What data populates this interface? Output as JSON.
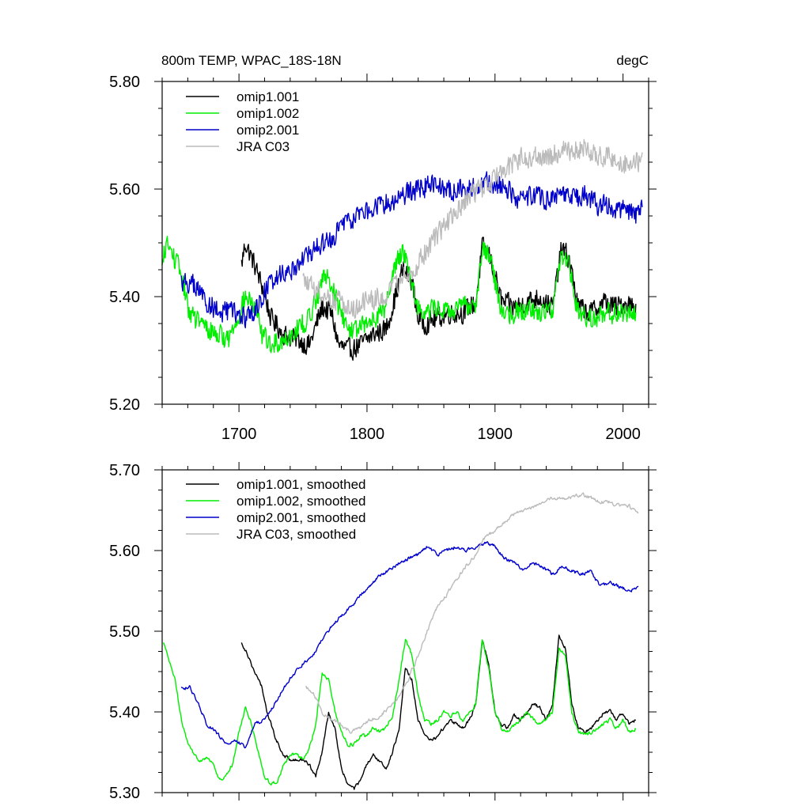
{
  "chart_data": [
    {
      "type": "line",
      "title": "800m TEMP, WPAC_18S-18N",
      "units": "degC",
      "xlim": [
        1640,
        2020
      ],
      "ylim": [
        5.2,
        5.8
      ],
      "xticks": [
        1700,
        1800,
        1900,
        2000
      ],
      "xtick_labels": [
        "1700",
        "1800",
        "1900",
        "2000"
      ],
      "yticks": [
        5.2,
        5.4,
        5.6,
        5.8
      ],
      "ytick_labels": [
        "5.20",
        "5.40",
        "5.60",
        "5.80"
      ],
      "noise": 0.018,
      "series": [
        {
          "name": "omip1.001",
          "color": "#000000",
          "x": [
            1702,
            1705,
            1712,
            1718,
            1725,
            1735,
            1745,
            1755,
            1765,
            1772,
            1778,
            1785,
            1795,
            1805,
            1815,
            1822,
            1828,
            1835,
            1840,
            1845,
            1855,
            1865,
            1875,
            1885,
            1890,
            1895,
            1900,
            1905,
            1915,
            1925,
            1935,
            1945,
            1952,
            1958,
            1965,
            1975,
            1985,
            1995,
            2003,
            2010
          ],
          "y": [
            5.46,
            5.5,
            5.46,
            5.42,
            5.36,
            5.33,
            5.32,
            5.31,
            5.38,
            5.37,
            5.31,
            5.3,
            5.31,
            5.33,
            5.34,
            5.4,
            5.45,
            5.43,
            5.36,
            5.35,
            5.36,
            5.37,
            5.37,
            5.39,
            5.49,
            5.48,
            5.44,
            5.39,
            5.38,
            5.39,
            5.4,
            5.38,
            5.49,
            5.47,
            5.38,
            5.37,
            5.39,
            5.38,
            5.39,
            5.38
          ]
        },
        {
          "name": "omip1.002",
          "color": "#00ee00",
          "x": [
            1640,
            1643,
            1650,
            1655,
            1660,
            1665,
            1675,
            1685,
            1692,
            1700,
            1705,
            1712,
            1718,
            1725,
            1735,
            1745,
            1755,
            1765,
            1770,
            1778,
            1785,
            1795,
            1805,
            1815,
            1822,
            1828,
            1835,
            1840,
            1845,
            1855,
            1865,
            1875,
            1885,
            1890,
            1895,
            1900,
            1905,
            1915,
            1925,
            1935,
            1945,
            1952,
            1958,
            1965,
            1975,
            1985,
            1995,
            2003,
            2010
          ],
          "y": [
            5.45,
            5.5,
            5.47,
            5.44,
            5.38,
            5.36,
            5.34,
            5.33,
            5.32,
            5.37,
            5.4,
            5.38,
            5.33,
            5.31,
            5.32,
            5.34,
            5.36,
            5.43,
            5.44,
            5.38,
            5.34,
            5.34,
            5.36,
            5.38,
            5.46,
            5.49,
            5.43,
            5.38,
            5.37,
            5.38,
            5.37,
            5.38,
            5.39,
            5.49,
            5.48,
            5.43,
            5.37,
            5.37,
            5.38,
            5.37,
            5.38,
            5.48,
            5.46,
            5.37,
            5.36,
            5.37,
            5.37,
            5.37,
            5.37
          ]
        },
        {
          "name": "omip2.001",
          "color": "#0000cc",
          "x": [
            1655,
            1665,
            1675,
            1685,
            1695,
            1705,
            1712,
            1720,
            1730,
            1740,
            1750,
            1760,
            1770,
            1780,
            1790,
            1800,
            1810,
            1820,
            1830,
            1840,
            1850,
            1860,
            1870,
            1880,
            1890,
            1900,
            1910,
            1920,
            1930,
            1940,
            1950,
            1960,
            1970,
            1980,
            1990,
            2000,
            2010,
            2015
          ],
          "y": [
            5.43,
            5.42,
            5.39,
            5.37,
            5.37,
            5.36,
            5.37,
            5.41,
            5.44,
            5.45,
            5.47,
            5.49,
            5.5,
            5.53,
            5.55,
            5.56,
            5.57,
            5.58,
            5.59,
            5.6,
            5.61,
            5.6,
            5.6,
            5.6,
            5.61,
            5.61,
            5.6,
            5.58,
            5.59,
            5.58,
            5.59,
            5.58,
            5.59,
            5.57,
            5.57,
            5.56,
            5.55,
            5.57
          ]
        },
        {
          "name": "JRA C03",
          "color": "#bbbbbb",
          "x": [
            1750,
            1760,
            1770,
            1780,
            1790,
            1800,
            1810,
            1820,
            1830,
            1840,
            1850,
            1860,
            1870,
            1880,
            1890,
            1900,
            1910,
            1920,
            1930,
            1940,
            1950,
            1960,
            1970,
            1980,
            1990,
            2000,
            2010,
            2015
          ],
          "y": [
            5.43,
            5.41,
            5.4,
            5.39,
            5.38,
            5.39,
            5.4,
            5.41,
            5.44,
            5.46,
            5.5,
            5.53,
            5.56,
            5.59,
            5.6,
            5.62,
            5.64,
            5.66,
            5.66,
            5.66,
            5.67,
            5.67,
            5.68,
            5.66,
            5.66,
            5.65,
            5.65,
            5.65
          ]
        }
      ]
    },
    {
      "type": "line",
      "title": "",
      "xlim": [
        1640,
        2020
      ],
      "ylim": [
        5.3,
        5.7
      ],
      "xticks": [
        1700,
        1800,
        1900,
        2000
      ],
      "yticks": [
        5.3,
        5.4,
        5.5,
        5.6,
        5.7
      ],
      "ytick_labels": [
        "5.30",
        "5.40",
        "5.50",
        "5.60",
        "5.70"
      ],
      "noise": 0.004,
      "series": [
        {
          "name": "omip1.001, smoothed",
          "color": "#000000",
          "x": [
            1702,
            1706,
            1712,
            1718,
            1722,
            1728,
            1735,
            1742,
            1750,
            1755,
            1760,
            1765,
            1770,
            1775,
            1780,
            1785,
            1790,
            1795,
            1800,
            1805,
            1810,
            1815,
            1820,
            1825,
            1830,
            1835,
            1840,
            1845,
            1850,
            1855,
            1860,
            1865,
            1870,
            1875,
            1880,
            1885,
            1890,
            1895,
            1900,
            1905,
            1910,
            1915,
            1920,
            1925,
            1930,
            1935,
            1940,
            1945,
            1950,
            1955,
            1960,
            1965,
            1970,
            1975,
            1980,
            1985,
            1990,
            1995,
            2000,
            2005,
            2010
          ],
          "y": [
            5.485,
            5.475,
            5.45,
            5.43,
            5.4,
            5.37,
            5.345,
            5.34,
            5.34,
            5.335,
            5.32,
            5.35,
            5.4,
            5.38,
            5.33,
            5.31,
            5.305,
            5.315,
            5.335,
            5.345,
            5.34,
            5.33,
            5.35,
            5.38,
            5.455,
            5.44,
            5.39,
            5.37,
            5.365,
            5.37,
            5.38,
            5.39,
            5.385,
            5.38,
            5.39,
            5.41,
            5.49,
            5.46,
            5.4,
            5.385,
            5.38,
            5.395,
            5.39,
            5.4,
            5.41,
            5.405,
            5.39,
            5.41,
            5.495,
            5.48,
            5.41,
            5.38,
            5.375,
            5.38,
            5.39,
            5.4,
            5.4,
            5.39,
            5.4,
            5.385,
            5.39
          ]
        },
        {
          "name": "omip1.002, smoothed",
          "color": "#00ee00",
          "x": [
            1641,
            1645,
            1650,
            1655,
            1660,
            1665,
            1670,
            1675,
            1680,
            1685,
            1690,
            1695,
            1700,
            1705,
            1710,
            1715,
            1720,
            1725,
            1730,
            1735,
            1740,
            1745,
            1750,
            1755,
            1760,
            1765,
            1770,
            1775,
            1780,
            1785,
            1790,
            1795,
            1800,
            1805,
            1810,
            1815,
            1820,
            1825,
            1830,
            1835,
            1840,
            1845,
            1850,
            1855,
            1860,
            1865,
            1870,
            1875,
            1880,
            1885,
            1890,
            1895,
            1900,
            1905,
            1910,
            1915,
            1920,
            1925,
            1930,
            1935,
            1940,
            1945,
            1950,
            1955,
            1960,
            1965,
            1970,
            1975,
            1980,
            1985,
            1990,
            1995,
            2000,
            2005,
            2010
          ],
          "y": [
            5.485,
            5.465,
            5.44,
            5.39,
            5.36,
            5.345,
            5.34,
            5.345,
            5.335,
            5.315,
            5.32,
            5.335,
            5.375,
            5.405,
            5.385,
            5.35,
            5.32,
            5.31,
            5.315,
            5.335,
            5.345,
            5.35,
            5.34,
            5.355,
            5.385,
            5.45,
            5.44,
            5.4,
            5.375,
            5.36,
            5.36,
            5.37,
            5.37,
            5.38,
            5.375,
            5.38,
            5.395,
            5.44,
            5.49,
            5.47,
            5.42,
            5.39,
            5.385,
            5.39,
            5.4,
            5.395,
            5.4,
            5.39,
            5.4,
            5.41,
            5.49,
            5.455,
            5.4,
            5.38,
            5.375,
            5.385,
            5.39,
            5.4,
            5.39,
            5.385,
            5.39,
            5.4,
            5.48,
            5.47,
            5.4,
            5.375,
            5.37,
            5.375,
            5.38,
            5.385,
            5.39,
            5.38,
            5.39,
            5.375,
            5.38
          ]
        },
        {
          "name": "omip2.001, smoothed",
          "color": "#0000cc",
          "x": [
            1655,
            1662,
            1668,
            1675,
            1682,
            1690,
            1698,
            1705,
            1712,
            1720,
            1728,
            1735,
            1742,
            1750,
            1758,
            1765,
            1772,
            1780,
            1787,
            1795,
            1802,
            1810,
            1817,
            1825,
            1832,
            1840,
            1847,
            1855,
            1862,
            1870,
            1877,
            1885,
            1892,
            1900,
            1907,
            1915,
            1922,
            1930,
            1937,
            1945,
            1952,
            1960,
            1967,
            1975,
            1982,
            1990,
            1997,
            2005,
            2012
          ],
          "y": [
            5.43,
            5.43,
            5.41,
            5.385,
            5.375,
            5.36,
            5.365,
            5.355,
            5.385,
            5.39,
            5.41,
            5.43,
            5.445,
            5.46,
            5.47,
            5.49,
            5.505,
            5.52,
            5.53,
            5.545,
            5.555,
            5.57,
            5.575,
            5.585,
            5.59,
            5.595,
            5.605,
            5.595,
            5.6,
            5.605,
            5.6,
            5.605,
            5.61,
            5.605,
            5.59,
            5.585,
            5.575,
            5.585,
            5.58,
            5.57,
            5.58,
            5.575,
            5.57,
            5.575,
            5.555,
            5.56,
            5.555,
            5.55,
            5.555
          ]
        },
        {
          "name": "JRA C03, smoothed",
          "color": "#bbbbbb",
          "x": [
            1752,
            1758,
            1765,
            1772,
            1780,
            1787,
            1795,
            1802,
            1810,
            1817,
            1825,
            1832,
            1840,
            1847,
            1855,
            1862,
            1870,
            1877,
            1885,
            1892,
            1900,
            1907,
            1915,
            1922,
            1930,
            1937,
            1945,
            1952,
            1960,
            1967,
            1975,
            1982,
            1990,
            1997,
            2005,
            2012
          ],
          "y": [
            5.43,
            5.425,
            5.4,
            5.39,
            5.385,
            5.375,
            5.38,
            5.39,
            5.395,
            5.405,
            5.42,
            5.44,
            5.47,
            5.5,
            5.53,
            5.545,
            5.565,
            5.58,
            5.595,
            5.615,
            5.625,
            5.635,
            5.645,
            5.65,
            5.655,
            5.66,
            5.665,
            5.665,
            5.665,
            5.67,
            5.665,
            5.66,
            5.66,
            5.655,
            5.655,
            5.645
          ]
        }
      ]
    }
  ]
}
